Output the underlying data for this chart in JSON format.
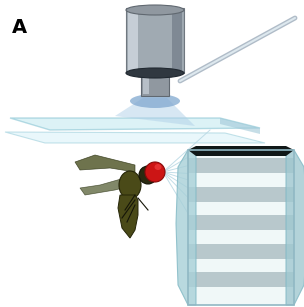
{
  "background_color": "#ffffff",
  "label_A": "A",
  "label_fontsize": 14,
  "fig_width": 3.04,
  "fig_height": 3.07
}
